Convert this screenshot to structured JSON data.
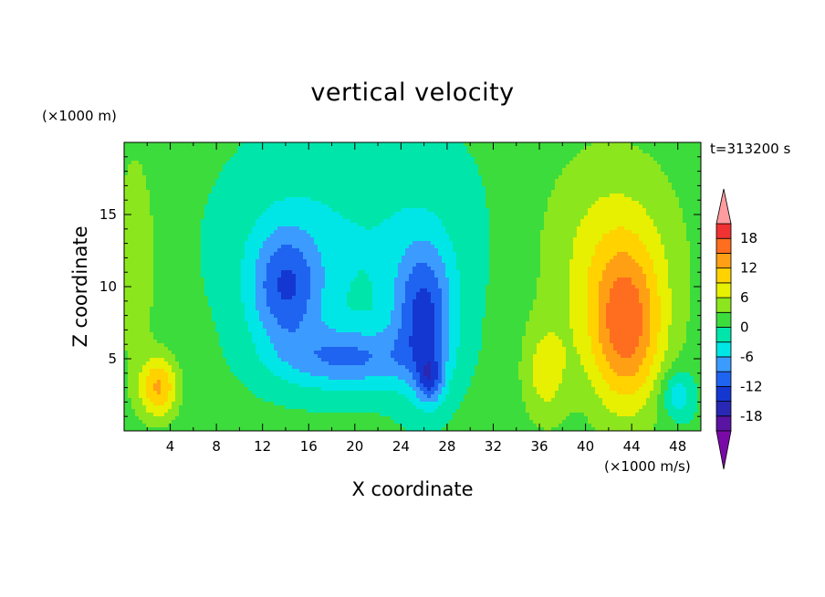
{
  "chart_data": {
    "type": "heatmap",
    "title": "vertical velocity",
    "xlabel": "X coordinate",
    "ylabel": "Z coordinate",
    "x_unit": "(×1000 m/s)",
    "y_unit": "(×1000 m)",
    "annotation": "t=313200 s",
    "xlim": [
      0,
      50
    ],
    "ylim": [
      0,
      20
    ],
    "x_ticks": [
      4,
      8,
      12,
      16,
      20,
      24,
      28,
      32,
      36,
      40,
      44,
      48
    ],
    "y_ticks": [
      5,
      10,
      15
    ],
    "colorbar": {
      "levels": [
        -21,
        -18,
        -15,
        -12,
        -9,
        -6,
        -3,
        0,
        3,
        6,
        9,
        12,
        15,
        18,
        21
      ],
      "labels": [
        18,
        12,
        6,
        0,
        -6,
        -12,
        -18
      ],
      "colors": [
        "#7a0aa8",
        "#5a14a4",
        "#2828b4",
        "#1437d2",
        "#1e64f0",
        "#3c9bff",
        "#00e6e6",
        "#00e6aa",
        "#3cdc3c",
        "#8ce61e",
        "#e6f000",
        "#ffd200",
        "#ffa014",
        "#ff6e1e",
        "#f03232",
        "#ff9ca0"
      ],
      "extend": "both"
    },
    "features": [
      {
        "x": 14.0,
        "z": 10.0,
        "amp": -11,
        "sx": 2.2,
        "sz": 3.0
      },
      {
        "x": 26.0,
        "z": 8.0,
        "amp": -12,
        "sx": 1.8,
        "sz": 3.5
      },
      {
        "x": 19.5,
        "z": 5.0,
        "amp": -9,
        "sx": 4.0,
        "sz": 1.5
      },
      {
        "x": 20.0,
        "z": 13.0,
        "amp": -4,
        "sx": 8.0,
        "sz": 6.0
      },
      {
        "x": 3.0,
        "z": 3.0,
        "amp": 11,
        "sx": 1.2,
        "sz": 1.5
      },
      {
        "x": 43.5,
        "z": 7.0,
        "amp": 13,
        "sx": 2.2,
        "sz": 4.0
      },
      {
        "x": 42.0,
        "z": 12.0,
        "amp": 6,
        "sx": 4.5,
        "sz": 5.5
      },
      {
        "x": 36.5,
        "z": 4.0,
        "amp": 6,
        "sx": 1.4,
        "sz": 2.5
      },
      {
        "x": 48.0,
        "z": 2.5,
        "amp": -7,
        "sx": 1.0,
        "sz": 1.2
      },
      {
        "x": 1.0,
        "z": 12.0,
        "amp": 4,
        "sx": 1.5,
        "sz": 6.0
      },
      {
        "x": 26.5,
        "z": 3.5,
        "amp": -9,
        "sx": 0.8,
        "sz": 1.2
      }
    ],
    "background": 1,
    "grid": false
  }
}
